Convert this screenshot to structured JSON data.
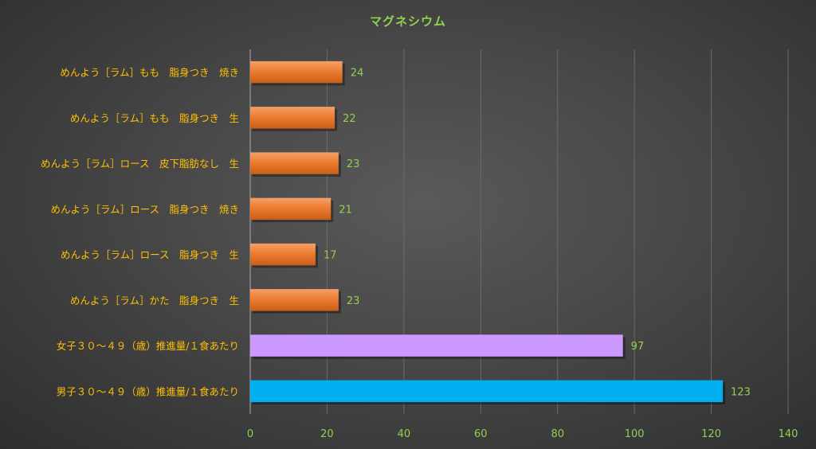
{
  "chart_data": {
    "type": "bar",
    "orientation": "horizontal",
    "title": "マグネシウム",
    "categories": [
      "めんよう［ラム］もも　脂身つき　焼き",
      "めんよう［ラム］もも　脂身つき　生",
      "めんよう［ラム］ロース　皮下脂肪なし　生",
      "めんよう［ラム］ロース　脂身つき　焼き",
      "めんよう［ラム］ロース　脂身つき　生",
      "めんよう［ラム］かた　脂身つき　生",
      "女子３０～４９（歳）推進量/１食あたり",
      "男子３０～４９（歳）推進量/１食あたり"
    ],
    "values": [
      24,
      22,
      23,
      21,
      17,
      23,
      97,
      123
    ],
    "bar_colors": [
      "#ed7d31",
      "#ed7d31",
      "#ed7d31",
      "#ed7d31",
      "#ed7d31",
      "#ed7d31",
      "#cc99ff",
      "#00b0f0"
    ],
    "xlim": [
      0,
      140
    ],
    "xticks": [
      "0",
      "20",
      "40",
      "60",
      "80",
      "100",
      "120",
      "140"
    ],
    "grid": true,
    "legend": "none"
  }
}
